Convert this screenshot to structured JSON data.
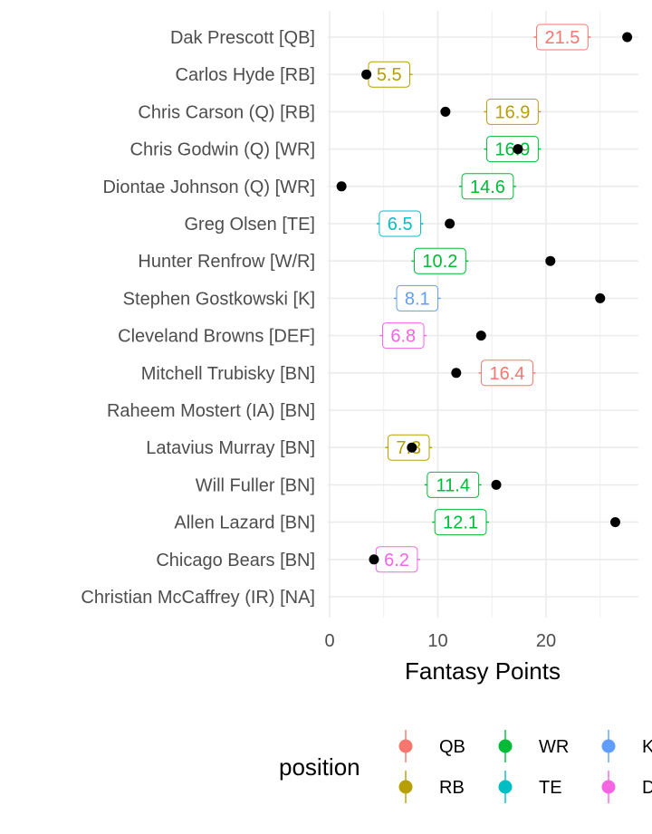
{
  "chart_data": {
    "type": "dot-with-labels",
    "xlabel": "Fantasy Points",
    "xlim": [
      0,
      28
    ],
    "x_ticks": [
      "0",
      "10",
      "20"
    ],
    "grid": true,
    "legend": {
      "title": "position",
      "placement": "bottom"
    },
    "position_colors": {
      "QB": "#F8766D",
      "RB": "#B79F00",
      "WR": "#00BA38",
      "TE": "#00BFC4",
      "K": "#619CFF",
      "DEF": "#F564E3"
    },
    "legend_entries": [
      {
        "key": "QB",
        "label": "QB"
      },
      {
        "key": "RB",
        "label": "RB"
      },
      {
        "key": "WR",
        "label": "WR"
      },
      {
        "key": "TE",
        "label": "TE"
      },
      {
        "key": "K",
        "label": "K"
      },
      {
        "key": "DEF",
        "label": "D"
      }
    ],
    "players": [
      {
        "name": "Dak Prescott [QB]",
        "position": "QB",
        "projection": 21.5,
        "label": "21.5",
        "actual": 27.5
      },
      {
        "name": "Carlos Hyde [RB]",
        "position": "RB",
        "projection": 5.5,
        "label": "5.5",
        "actual": 3.4
      },
      {
        "name": "Chris Carson (Q) [RB]",
        "position": "RB",
        "projection": 16.9,
        "label": "16.9",
        "actual": 10.7
      },
      {
        "name": "Chris Godwin (Q) [WR]",
        "position": "WR",
        "projection": 16.9,
        "label": "16.9",
        "actual": 17.4
      },
      {
        "name": "Diontae Johnson (Q) [WR]",
        "position": "WR",
        "projection": 14.6,
        "label": "14.6",
        "actual": 1.1
      },
      {
        "name": "Greg Olsen [TE]",
        "position": "TE",
        "projection": 6.5,
        "label": "6.5",
        "actual": 11.1
      },
      {
        "name": "Hunter Renfrow [W/R]",
        "position": "WR",
        "projection": 10.2,
        "label": "10.2",
        "actual": 20.4
      },
      {
        "name": "Stephen Gostkowski [K]",
        "position": "K",
        "projection": 8.1,
        "label": "8.1",
        "actual": 25.0
      },
      {
        "name": "Cleveland Browns [DEF]",
        "position": "DEF",
        "projection": 6.8,
        "label": "6.8",
        "actual": 14.0
      },
      {
        "name": "Mitchell Trubisky [BN]",
        "position": "QB",
        "projection": 16.4,
        "label": "16.4",
        "actual": 11.7
      },
      {
        "name": "Raheem Mostert (IA) [BN]",
        "position": null,
        "projection": null,
        "label": null,
        "actual": null
      },
      {
        "name": "Latavius Murray [BN]",
        "position": "RB",
        "projection": 7.3,
        "label": "7.3",
        "actual": 7.6
      },
      {
        "name": "Will Fuller [BN]",
        "position": "WR",
        "projection": 11.4,
        "label": "11.4",
        "actual": 15.4
      },
      {
        "name": "Allen Lazard [BN]",
        "position": "WR",
        "projection": 12.1,
        "label": "12.1",
        "actual": 26.4
      },
      {
        "name": "Chicago Bears [BN]",
        "position": "DEF",
        "projection": 6.2,
        "label": "6.2",
        "actual": 4.1
      },
      {
        "name": "Christian McCaffrey (IR) [NA]",
        "position": null,
        "projection": null,
        "label": null,
        "actual": null
      }
    ]
  }
}
